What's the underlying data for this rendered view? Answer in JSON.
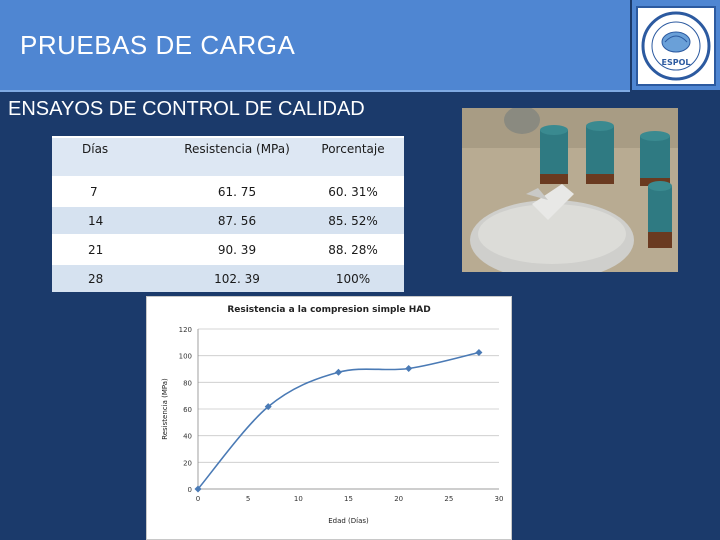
{
  "header": {
    "title": "PRUEBAS DE CARGA"
  },
  "logo": {
    "name": "espol-seal-icon",
    "text": "ESPOL"
  },
  "section": {
    "subtitle": "ENSAYOS DE CONTROL DE CALIDAD"
  },
  "table": {
    "headers": [
      "Días",
      "Resistencia (MPa)",
      "Porcentaje"
    ],
    "rows": [
      [
        "7",
        "61. 75",
        "60. 31%"
      ],
      [
        "14",
        "87. 56",
        "85. 52%"
      ],
      [
        "21",
        "90. 39",
        "88. 28%"
      ],
      [
        "28",
        "102. 39",
        "100%"
      ]
    ]
  },
  "photo": {
    "name": "concrete-cylinders-photo"
  },
  "colors": {
    "background": "#1b3a6b",
    "header": "#4f86d2",
    "series": "#4a7ab5"
  },
  "chart_data": {
    "type": "line",
    "title": "Resistencia a la compresion simple HAD",
    "xlabel": "Edad (Días)",
    "ylabel": "Resistencia (MPa)",
    "xlim": [
      0,
      30
    ],
    "ylim": [
      0,
      120
    ],
    "xticks": [
      0,
      5,
      10,
      15,
      20,
      25,
      30
    ],
    "yticks": [
      0,
      20,
      40,
      60,
      80,
      100,
      120
    ],
    "grid": "horizontal",
    "series": [
      {
        "x": [
          0,
          7,
          14,
          21,
          28
        ],
        "values": [
          0,
          61.75,
          87.56,
          90.39,
          102.39
        ]
      }
    ],
    "smooth": true
  }
}
